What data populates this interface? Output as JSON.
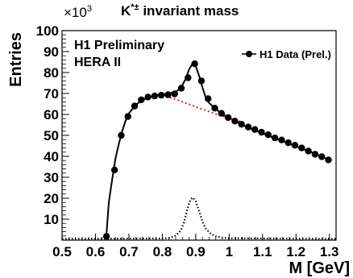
{
  "chart_data": {
    "type": "scatter",
    "title": "K*± invariant mass",
    "title_main": "K",
    "title_sup": "*±",
    "title_rest": " invariant mass",
    "xlabel": "M [GeV]",
    "ylabel": "Entries",
    "y_exponent_base": "×10",
    "y_exponent_power": "3",
    "xlim": [
      0.5,
      1.32
    ],
    "ylim": [
      0,
      100
    ],
    "x_ticks": [
      "0.5",
      "0.6",
      "0.7",
      "0.8",
      "0.9",
      "1",
      "1.1",
      "1.2",
      "1.3"
    ],
    "y_ticks": [
      "10",
      "20",
      "30",
      "40",
      "50",
      "60",
      "70",
      "80",
      "90",
      "100"
    ],
    "annotations": [
      "H1 Preliminary",
      "HERA II"
    ],
    "legend": {
      "position": "top-right",
      "label": "H1 Data (Prel.)"
    },
    "series": [
      {
        "name": "H1 Data (Prel.)",
        "style": "markers",
        "color": "#000000",
        "x": [
          0.633,
          0.657,
          0.677,
          0.697,
          0.717,
          0.737,
          0.757,
          0.777,
          0.797,
          0.817,
          0.837,
          0.857,
          0.877,
          0.897,
          0.917,
          0.937,
          0.957,
          0.977,
          0.997,
          1.017,
          1.037,
          1.057,
          1.077,
          1.097,
          1.117,
          1.137,
          1.157,
          1.177,
          1.197,
          1.217,
          1.237,
          1.257,
          1.277,
          1.297
        ],
        "y": [
          1.8,
          33.5,
          50.0,
          59.0,
          64.0,
          67.0,
          68.3,
          68.8,
          69.2,
          69.4,
          69.8,
          72.5,
          77.5,
          84.2,
          76.0,
          67.5,
          63.0,
          60.5,
          58.5,
          56.8,
          55.3,
          54.0,
          52.8,
          51.5,
          50.3,
          48.8,
          47.8,
          46.5,
          45.3,
          44.0,
          42.5,
          41.0,
          39.8,
          38.3
        ]
      },
      {
        "name": "fit",
        "style": "solid",
        "color": "#000000",
        "x": [
          0.632,
          0.64,
          0.65,
          0.66,
          0.67,
          0.68,
          0.69,
          0.7,
          0.72,
          0.74,
          0.76,
          0.78,
          0.8,
          0.82,
          0.84,
          0.855,
          0.87,
          0.88,
          0.89,
          0.895,
          0.9,
          0.91,
          0.92,
          0.93,
          0.94,
          0.96,
          0.98,
          1.0,
          1.05,
          1.1,
          1.15,
          1.2,
          1.25,
          1.3
        ],
        "y": [
          0.5,
          18.0,
          29.0,
          39.0,
          46.0,
          52.0,
          57.0,
          60.5,
          64.5,
          66.8,
          68.2,
          69.0,
          69.4,
          70.0,
          70.8,
          72.5,
          77.0,
          81.5,
          84.2,
          84.5,
          83.0,
          78.5,
          73.0,
          68.0,
          65.5,
          62.5,
          60.2,
          58.3,
          54.2,
          51.0,
          47.8,
          44.8,
          41.7,
          38.3
        ]
      },
      {
        "name": "background",
        "style": "dashed",
        "color": "#e8201c",
        "x": [
          0.8,
          0.84,
          0.88,
          0.92,
          0.96,
          1.0,
          1.05
        ],
        "y": [
          69.4,
          67.2,
          64.8,
          62.5,
          60.2,
          58.2,
          55.8
        ]
      },
      {
        "name": "signal",
        "style": "dotted",
        "color": "#000000",
        "x": [
          0.5,
          0.8,
          0.82,
          0.84,
          0.855,
          0.865,
          0.875,
          0.885,
          0.892,
          0.9,
          0.91,
          0.92,
          0.93,
          0.945,
          0.96,
          0.98,
          1.0,
          1.32
        ],
        "y": [
          0.6,
          0.8,
          1.0,
          2.2,
          4.5,
          8.5,
          15.0,
          19.5,
          20.3,
          18.5,
          14.0,
          9.0,
          5.5,
          3.0,
          1.8,
          1.2,
          0.9,
          0.6
        ]
      }
    ]
  }
}
